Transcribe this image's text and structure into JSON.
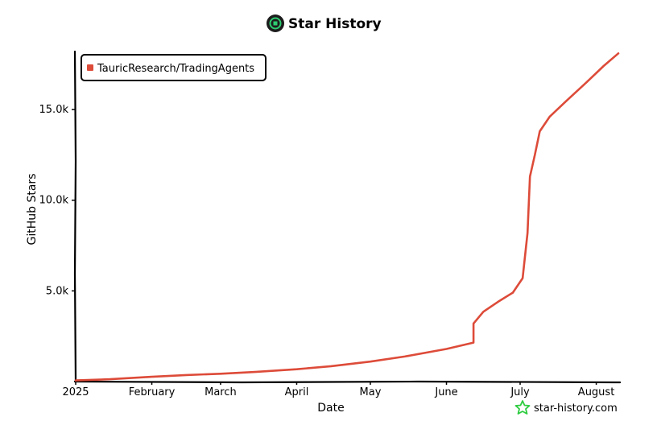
{
  "chart_data": {
    "type": "line",
    "title": "Star History",
    "xlabel": "Date",
    "ylabel": "GitHub Stars",
    "x_tick_labels": [
      "2025",
      "February",
      "March",
      "April",
      "May",
      "June",
      "July",
      "August"
    ],
    "x_tick_dates": [
      "2025-01-01",
      "2025-02-01",
      "2025-03-01",
      "2025-04-01",
      "2025-05-01",
      "2025-06-01",
      "2025-07-01",
      "2025-08-01"
    ],
    "xlim": [
      "2025-01-01",
      "2025-08-10"
    ],
    "y_ticks": [
      5000,
      10000,
      15000
    ],
    "y_tick_labels": [
      "5.0k",
      "10.0k",
      "15.0k"
    ],
    "ylim": [
      0,
      18200
    ],
    "grid": false,
    "legend_position": "top-left",
    "series": [
      {
        "name": "TauricResearch/TradingAgents",
        "color": "#dd4b39",
        "points": [
          [
            "2025-01-01",
            60
          ],
          [
            "2025-01-15",
            130
          ],
          [
            "2025-02-01",
            260
          ],
          [
            "2025-02-15",
            360
          ],
          [
            "2025-03-01",
            430
          ],
          [
            "2025-03-15",
            530
          ],
          [
            "2025-04-01",
            680
          ],
          [
            "2025-04-15",
            850
          ],
          [
            "2025-05-01",
            1100
          ],
          [
            "2025-05-15",
            1380
          ],
          [
            "2025-06-01",
            1800
          ],
          [
            "2025-06-12",
            2150
          ],
          [
            "2025-06-12",
            3200
          ],
          [
            "2025-06-16",
            3850
          ],
          [
            "2025-06-22",
            4400
          ],
          [
            "2025-06-28",
            4900
          ],
          [
            "2025-07-02",
            5700
          ],
          [
            "2025-07-04",
            8200
          ],
          [
            "2025-07-05",
            11300
          ],
          [
            "2025-07-07",
            12500
          ],
          [
            "2025-07-09",
            13800
          ],
          [
            "2025-07-13",
            14600
          ],
          [
            "2025-07-20",
            15500
          ],
          [
            "2025-07-28",
            16500
          ],
          [
            "2025-08-04",
            17400
          ],
          [
            "2025-08-10",
            18100
          ]
        ]
      }
    ]
  },
  "branding": {
    "watermark": "star-history.com"
  },
  "colors": {
    "series": "#dd4b39",
    "axis": "#000000",
    "logo_background": "#1c1c1c",
    "logo_accent": "#2ecc71",
    "watermark_star": "#2ecc40"
  },
  "icons": {
    "title_icon": "star-history-logo-icon",
    "watermark_icon": "star-outline-icon"
  }
}
